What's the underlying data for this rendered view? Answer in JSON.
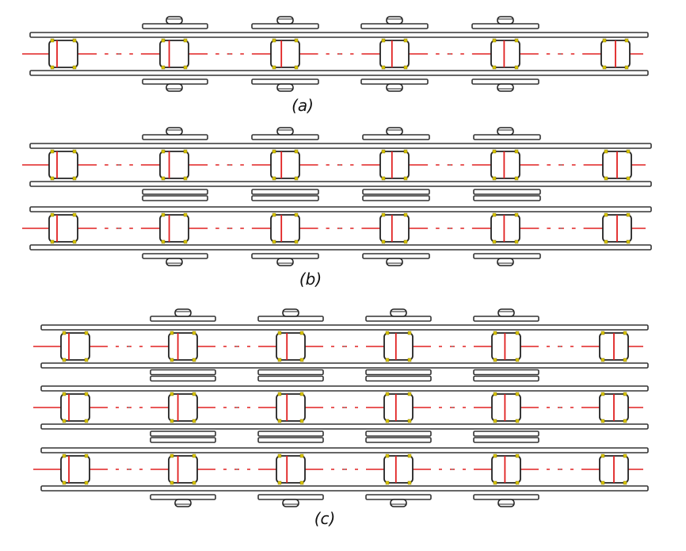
{
  "figure": {
    "colors": {
      "plate_stroke": "#333333",
      "plate_fill": "#ffffff",
      "roller_stroke": "#222222",
      "centerline": "#e02020",
      "pin_mark": "#d8c400"
    },
    "panels": [
      {
        "id": "a",
        "label": "(a)",
        "strands": 1
      },
      {
        "id": "b",
        "label": "(b)",
        "strands": 2
      },
      {
        "id": "c",
        "label": "(c)",
        "strands": 3
      }
    ]
  }
}
